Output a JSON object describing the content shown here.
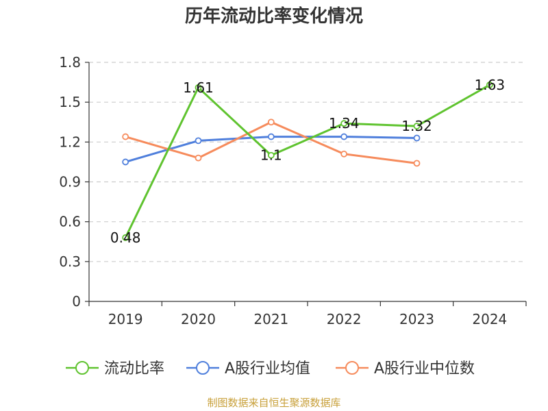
{
  "chart_data": {
    "type": "line",
    "title": "历年流动比率变化情况",
    "categories": [
      "2019",
      "2020",
      "2021",
      "2022",
      "2023",
      "2024"
    ],
    "ylim": [
      0,
      1.8
    ],
    "yticks": [
      "0",
      "0.3",
      "0.6",
      "0.9",
      "1.2",
      "1.5",
      "1.8"
    ],
    "grid": true,
    "legend_position": "bottom",
    "series": [
      {
        "name": "流动比率",
        "color": "#5fc32f",
        "values": [
          0.48,
          1.61,
          1.1,
          1.34,
          1.32,
          1.63
        ],
        "data_labels": [
          "0.48",
          "1.61",
          "1.1",
          "1.34",
          "1.32",
          "1.63"
        ]
      },
      {
        "name": "A股行业均值",
        "color": "#4f7fdc",
        "values": [
          1.05,
          1.21,
          1.24,
          1.24,
          1.23,
          null
        ]
      },
      {
        "name": "A股行业中位数",
        "color": "#f68b5c",
        "values": [
          1.24,
          1.08,
          1.35,
          1.11,
          1.04,
          null
        ]
      }
    ]
  },
  "source": "制图数据来自恒生聚源数据库"
}
